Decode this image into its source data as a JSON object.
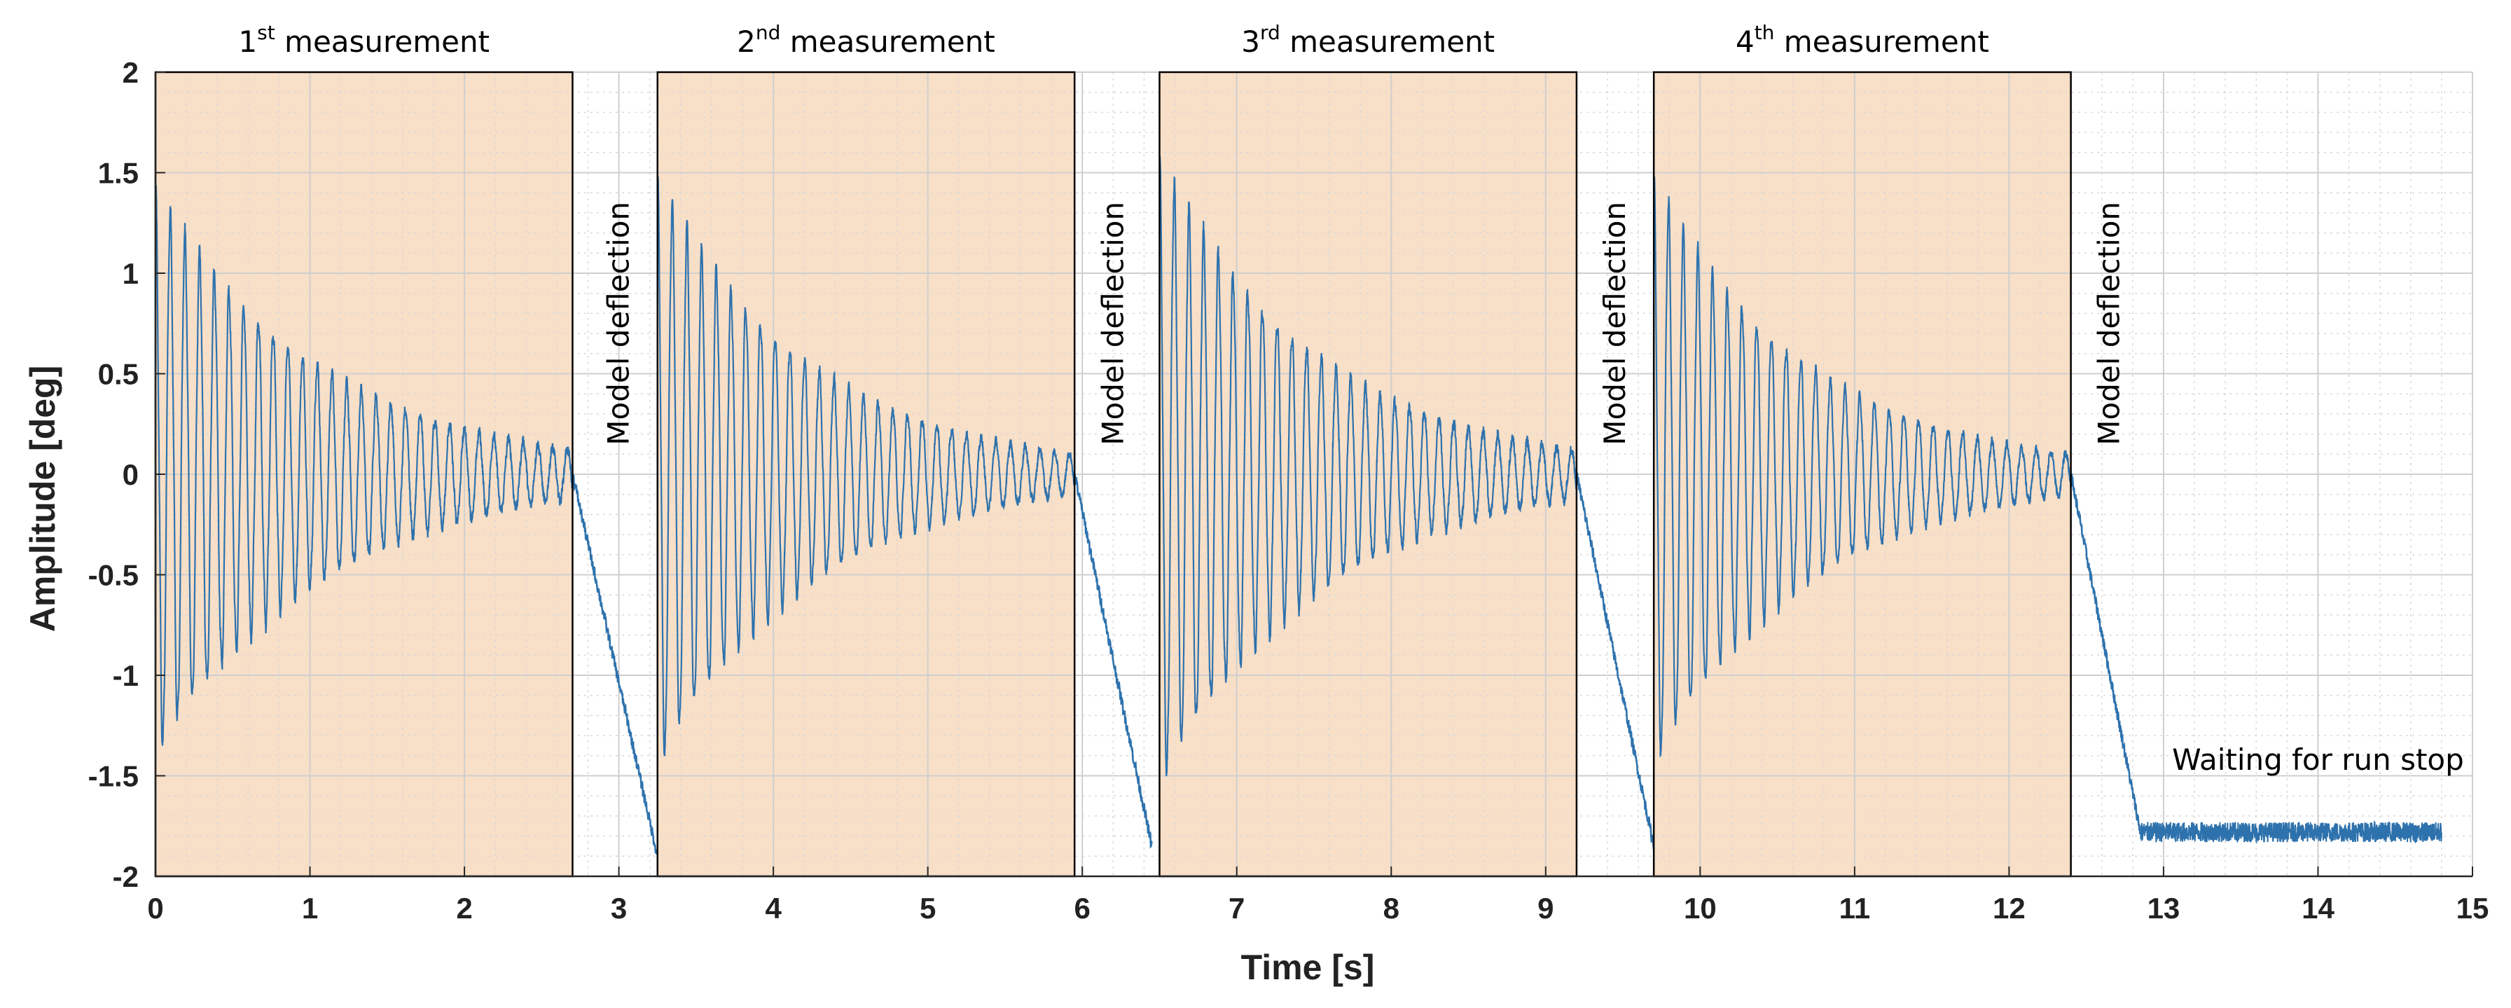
{
  "chart_data": {
    "type": "line",
    "xlabel": "Time [s]",
    "ylabel": "Amplitude [deg]",
    "xlim": [
      0,
      15
    ],
    "ylim": [
      -2,
      2
    ],
    "xticks": [
      0,
      1,
      2,
      3,
      4,
      5,
      6,
      7,
      8,
      9,
      10,
      11,
      12,
      13,
      14,
      15
    ],
    "xtick_labels": [
      "0",
      "1",
      "2",
      "3",
      "4",
      "5",
      "6",
      "7",
      "8",
      "9",
      "10",
      "11",
      "12",
      "13",
      "14",
      "15"
    ],
    "yticks": [
      2,
      1.5,
      1,
      0.5,
      0,
      -0.5,
      -1,
      -1.5,
      -2
    ],
    "ytick_labels": [
      "2",
      "1.5",
      "1",
      "0.5",
      "0",
      "-0.5",
      "-1",
      "-1.5",
      "-2"
    ],
    "grid": true,
    "line_color": "#2e72ad",
    "shade_color": "#f8dfc7",
    "measurements": [
      {
        "num": "1",
        "sup": "st",
        "word": "measurement",
        "start": 0.0,
        "end": 2.7,
        "amp0": 1.4,
        "ampEnd": 0.12,
        "freq": 10.5,
        "offset": 0.0,
        "noise": 0.05
      },
      {
        "num": "2",
        "sup": "nd",
        "word": "measurement",
        "start": 3.25,
        "end": 5.95,
        "amp0": 1.45,
        "ampEnd": 0.1,
        "freq": 10.5,
        "offset": 0.0,
        "noise": 0.04
      },
      {
        "num": "3",
        "sup": "rd",
        "word": "measurement",
        "start": 6.5,
        "end": 9.2,
        "amp0": 1.55,
        "ampEnd": 0.12,
        "freq": 10.5,
        "offset": 0.0,
        "noise": 0.05
      },
      {
        "num": "4",
        "sup": "th",
        "word": "measurement",
        "start": 9.7,
        "end": 12.4,
        "amp0": 1.45,
        "ampEnd": 0.1,
        "freq": 10.5,
        "offset": 0.0,
        "noise": 0.04
      }
    ],
    "deflections": [
      {
        "label": "Model deflection",
        "start": 2.7,
        "end": 3.25,
        "y_start": 0.0,
        "y_end": -1.9,
        "label_x": 3.0
      },
      {
        "label": "Model deflection",
        "start": 5.95,
        "end": 6.45,
        "y_start": 0.0,
        "y_end": -1.85,
        "label_x": 6.2
      },
      {
        "label": "Model deflection",
        "start": 9.2,
        "end": 9.7,
        "y_start": 0.0,
        "y_end": -1.85,
        "label_x": 9.45
      },
      {
        "label": "Model deflection",
        "start": 12.4,
        "end": 12.85,
        "y_start": 0.0,
        "y_end": -1.78,
        "label_x": 12.65
      }
    ],
    "waiting": {
      "label": "Waiting for run stop",
      "start": 12.85,
      "end": 14.8,
      "level": -1.78,
      "noise": 0.05,
      "label_x": 14.0,
      "label_y": -1.47
    }
  }
}
